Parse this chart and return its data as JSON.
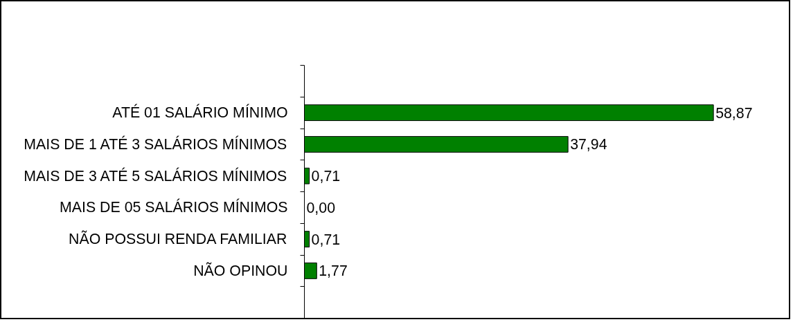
{
  "chart_data": {
    "type": "bar",
    "orientation": "horizontal",
    "categories": [
      "ATÉ 01 SALÁRIO MÍNIMO",
      "MAIS DE 1 ATÉ 3 SALÁRIOS MÍNIMOS",
      "MAIS DE 3 ATÉ 5 SALÁRIOS MÍNIMOS",
      "MAIS DE 05 SALÁRIOS MÍNIMOS",
      "NÃO POSSUI RENDA FAMILIAR",
      "NÃO OPINOU"
    ],
    "values": [
      58.87,
      37.94,
      0.71,
      0.0,
      0.71,
      1.77
    ],
    "value_labels": [
      "58,87",
      "37,94",
      "0,71",
      "0,00",
      "0,71",
      "1,77"
    ],
    "color": "#008000",
    "grid": false
  }
}
